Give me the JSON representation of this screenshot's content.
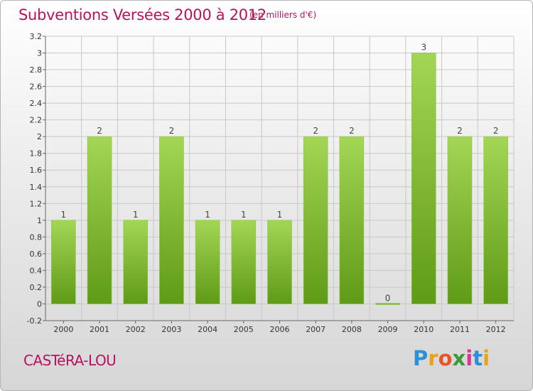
{
  "page": {
    "title": "Subventions Versées 2000 à 2012",
    "subtitle": "(en milliers d'€)",
    "commune": "CASTéRA-LOU",
    "logo": {
      "letters": [
        {
          "ch": "P",
          "color": "#2f8fd6"
        },
        {
          "ch": "r",
          "color": "#e8a21c"
        },
        {
          "ch": "o",
          "color": "#e8552a"
        },
        {
          "ch": "x",
          "color": "#3a9a3a"
        },
        {
          "ch": "i",
          "color": "#d8378a"
        },
        {
          "ch": "t",
          "color": "#2f8fd6"
        },
        {
          "ch": "i",
          "color": "#e8a21c"
        }
      ]
    }
  },
  "chart_data": {
    "type": "bar",
    "categories": [
      "2000",
      "2001",
      "2002",
      "2003",
      "2004",
      "2005",
      "2006",
      "2007",
      "2008",
      "2009",
      "2010",
      "2011",
      "2012"
    ],
    "values": [
      1,
      2,
      1,
      2,
      1,
      1,
      1,
      2,
      2,
      0,
      3,
      2,
      2
    ],
    "data_labels": [
      "1",
      "2",
      "1",
      "2",
      "1",
      "1",
      "1",
      "2",
      "2",
      "0",
      "3",
      "2",
      "2"
    ],
    "ylim": [
      -0.2,
      3.2
    ],
    "yticks": [
      -0.2,
      0,
      0.2,
      0.4,
      0.6,
      0.8,
      1,
      1.2,
      1.4,
      1.6,
      1.8,
      2,
      2.2,
      2.4,
      2.6,
      2.8,
      3,
      3.2
    ],
    "ytick_labels": [
      "-0.2",
      "0",
      "0.2",
      "0.4",
      "0.6",
      "0.8",
      "1",
      "1.2",
      "1.4",
      "1.6",
      "1.8",
      "2",
      "2.2",
      "2.4",
      "2.6",
      "2.8",
      "3",
      "3.2"
    ],
    "grid": true,
    "colors": {
      "bar_light": "#9fd44e",
      "bar_dark": "#5e9a16",
      "grid": "#c8c8c8",
      "title": "#b5135f"
    }
  }
}
